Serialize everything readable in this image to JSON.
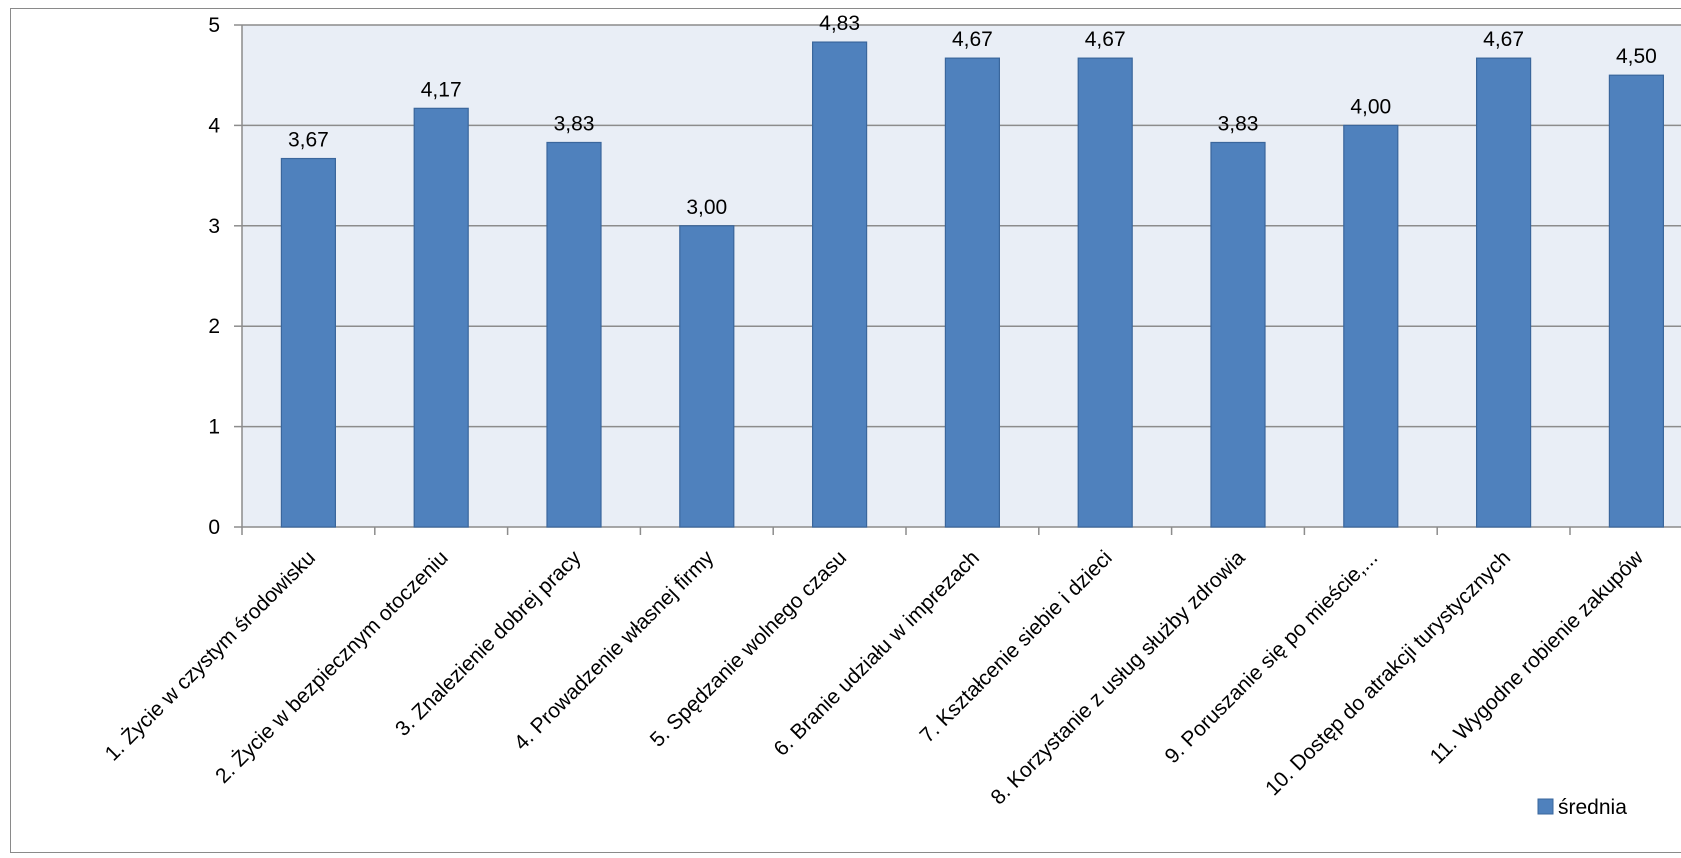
{
  "chart_data": {
    "type": "bar",
    "categories": [
      "1. Życie w czystym środowisku",
      "2. Życie w bezpiecznym otoczeniu",
      "3. Znalezienie dobrej pracy",
      "4. Prowadzenie własnej firmy",
      "5. Spędzanie wolnego czasu",
      "6. Branie udziału w imprezach",
      "7. Kształcenie siebie i dzieci",
      "8. Korzystanie z usług służby zdrowia",
      "9. Poruszanie się po mieście,...",
      "10. Dostęp do atrakcji turystycznych",
      "11. Wygodne robienie zakupów"
    ],
    "series": [
      {
        "name": "średnia",
        "values": [
          3.67,
          4.17,
          3.83,
          3.0,
          4.83,
          4.67,
          4.67,
          3.83,
          4.0,
          4.67,
          4.5
        ],
        "labels": [
          "3,67",
          "4,17",
          "3,83",
          "3,00",
          "4,83",
          "4,67",
          "4,67",
          "3,83",
          "4,00",
          "4,67",
          "4,50"
        ],
        "color": "#4F81BD"
      }
    ],
    "ylim": [
      0,
      5
    ],
    "yticks": [
      "0",
      "1",
      "2",
      "3",
      "4",
      "5"
    ],
    "grid": true,
    "legend_position": "bottom-right",
    "plot_background": "#E9EEF6"
  }
}
